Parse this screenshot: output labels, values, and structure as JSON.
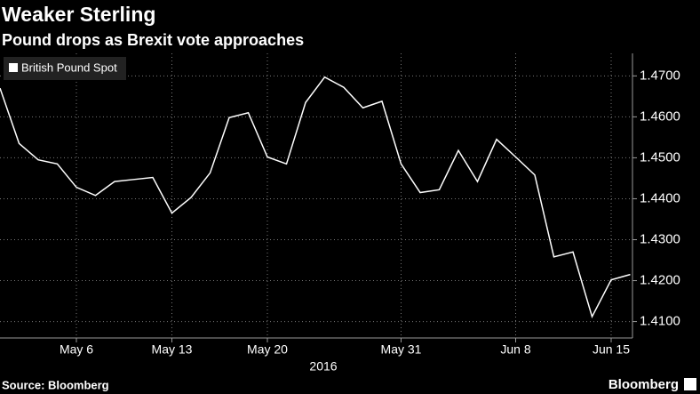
{
  "chart_data": {
    "type": "line",
    "title": "Weaker Sterling",
    "subtitle": "Pound drops as Brexit vote approaches",
    "x_label": "2016",
    "source": "Source: Bloomberg",
    "brand": "Bloomberg",
    "categories": [
      null,
      null,
      null,
      null,
      "May 6",
      null,
      null,
      null,
      null,
      "May 13",
      null,
      null,
      null,
      null,
      "May 20",
      null,
      null,
      null,
      null,
      null,
      null,
      "May 31",
      null,
      null,
      null,
      null,
      null,
      "Jun 8",
      null,
      null,
      null,
      null,
      "Jun 15",
      null
    ],
    "series": [
      {
        "name": "British Pound Spot",
        "color": "#ffffff",
        "values": [
          1.467,
          1.4535,
          1.4495,
          1.4485,
          1.4428,
          1.4408,
          1.4442,
          1.4447,
          1.4452,
          1.4365,
          1.4403,
          1.4463,
          1.4598,
          1.461,
          1.4502,
          1.4485,
          1.4635,
          1.4697,
          1.4672,
          1.4622,
          1.4638,
          1.4485,
          1.4415,
          1.4422,
          1.4518,
          1.4442,
          1.4545,
          1.4502,
          1.4458,
          1.4258,
          1.427,
          1.4112,
          1.4202,
          1.4215
        ]
      }
    ],
    "ylim": [
      1.406,
      1.4755
    ],
    "yticks": [
      {
        "value": 1.41,
        "label": "1.4100"
      },
      {
        "value": 1.42,
        "label": "1.4200"
      },
      {
        "value": 1.43,
        "label": "1.4300"
      },
      {
        "value": 1.44,
        "label": "1.4400"
      },
      {
        "value": 1.45,
        "label": "1.4500"
      },
      {
        "value": 1.46,
        "label": "1.4600"
      },
      {
        "value": 1.47,
        "label": "1.4700"
      }
    ],
    "grid": true,
    "legend": "top-left"
  }
}
